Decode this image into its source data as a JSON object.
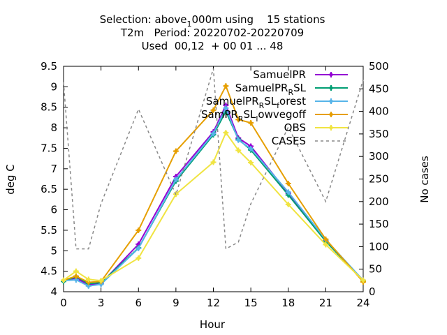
{
  "chart_data": {
    "type": "line",
    "title_lines": [
      "Selection: above_1000m using 15 stations",
      "T2m Period: 20220702-20220709",
      "Used 00,12 + 00 01 ... 48"
    ],
    "title_parts": {
      "line1_a": "Selection: above",
      "line1_sub": "1",
      "line1_b": "000m using    15 stations",
      "line2": "T2m   Period: 20220702-20220709",
      "line3": "Used  00,12  + 00 01 ... 48"
    },
    "xlabel": "Hour",
    "ylabel": "deg C",
    "y2label": "No cases",
    "xlim": [
      0,
      24
    ],
    "ylim": [
      4,
      9.5
    ],
    "y2lim": [
      0,
      500
    ],
    "xticks": [
      0,
      3,
      6,
      9,
      12,
      15,
      18,
      21,
      24
    ],
    "yticks": [
      4,
      4.5,
      5,
      5.5,
      6,
      6.5,
      7,
      7.5,
      8,
      8.5,
      9,
      9.5
    ],
    "y2ticks": [
      0,
      50,
      100,
      150,
      200,
      250,
      300,
      350,
      400,
      450,
      500
    ],
    "legend_position": "top-right",
    "series": [
      {
        "name": "SamuelPR",
        "legend_parts": [
          [
            "SamuelPR",
            ""
          ]
        ],
        "color": "#9400d3",
        "marker": "plus",
        "axis": "y",
        "x": [
          0,
          1,
          2,
          3,
          6,
          9,
          12,
          13,
          14,
          15,
          18,
          21,
          24
        ],
        "values": [
          4.27,
          4.33,
          4.17,
          4.2,
          5.16,
          6.81,
          7.9,
          8.55,
          7.75,
          7.55,
          6.4,
          5.24,
          4.28
        ]
      },
      {
        "name": "SamuelPR_RSL",
        "legend_parts": [
          [
            "SamuelPR",
            ""
          ],
          [
            "R",
            "sub"
          ],
          [
            "SL",
            ""
          ]
        ],
        "color": "#009e73",
        "marker": "plus",
        "axis": "y",
        "x": [
          0,
          1,
          2,
          3,
          6,
          9,
          12,
          13,
          14,
          15,
          18,
          21,
          24
        ],
        "values": [
          4.25,
          4.37,
          4.2,
          4.22,
          5.07,
          6.7,
          7.83,
          8.4,
          7.72,
          7.46,
          6.36,
          5.23,
          4.27
        ]
      },
      {
        "name": "SamuelPR_RSL_forest",
        "legend_parts": [
          [
            "SamuelPR",
            ""
          ],
          [
            "R",
            "sub"
          ],
          [
            "SL",
            ""
          ],
          [
            "f",
            "sub"
          ],
          [
            "orest",
            ""
          ]
        ],
        "color": "#56b4e9",
        "marker": "plus",
        "axis": "y",
        "x": [
          0,
          1,
          2,
          3,
          6,
          9,
          12,
          13,
          14,
          15,
          18,
          21,
          24
        ],
        "values": [
          4.27,
          4.29,
          4.14,
          4.18,
          5.06,
          6.74,
          7.86,
          8.48,
          7.7,
          7.49,
          6.43,
          5.27,
          4.28
        ]
      },
      {
        "name": "SamPR_RSL_lowvegoff",
        "legend_parts": [
          [
            "SamPR",
            ""
          ],
          [
            "R",
            "sub"
          ],
          [
            "SL",
            ""
          ],
          [
            "l",
            "sub"
          ],
          [
            "owvegoff",
            ""
          ]
        ],
        "color": "#e69f00",
        "marker": "plus",
        "axis": "y",
        "x": [
          0,
          1,
          2,
          3,
          6,
          9,
          12,
          13,
          14,
          15,
          18,
          21,
          24
        ],
        "values": [
          4.28,
          4.38,
          4.23,
          4.25,
          5.5,
          7.43,
          8.43,
          9.02,
          8.2,
          8.12,
          6.64,
          5.28,
          4.24
        ]
      },
      {
        "name": "OBS",
        "legend_parts": [
          [
            "OBS",
            ""
          ]
        ],
        "color": "#f0e442",
        "marker": "plus",
        "axis": "y",
        "x": [
          0,
          1,
          2,
          3,
          6,
          9,
          12,
          13,
          14,
          15,
          18,
          21,
          24
        ],
        "values": [
          4.28,
          4.5,
          4.3,
          4.27,
          4.82,
          6.38,
          7.16,
          7.88,
          7.45,
          7.15,
          6.13,
          5.15,
          4.28
        ]
      },
      {
        "name": "CASES",
        "legend_parts": [
          [
            "CASES",
            ""
          ]
        ],
        "color": "#888888",
        "marker": "none",
        "dashed": true,
        "axis": "y2",
        "x": [
          0,
          1,
          2,
          3,
          6,
          9,
          12,
          13,
          14,
          15,
          18,
          21,
          24
        ],
        "values": [
          465,
          95,
          95,
          195,
          405,
          215,
          495,
          95,
          110,
          195,
          365,
          200,
          470
        ]
      }
    ]
  }
}
